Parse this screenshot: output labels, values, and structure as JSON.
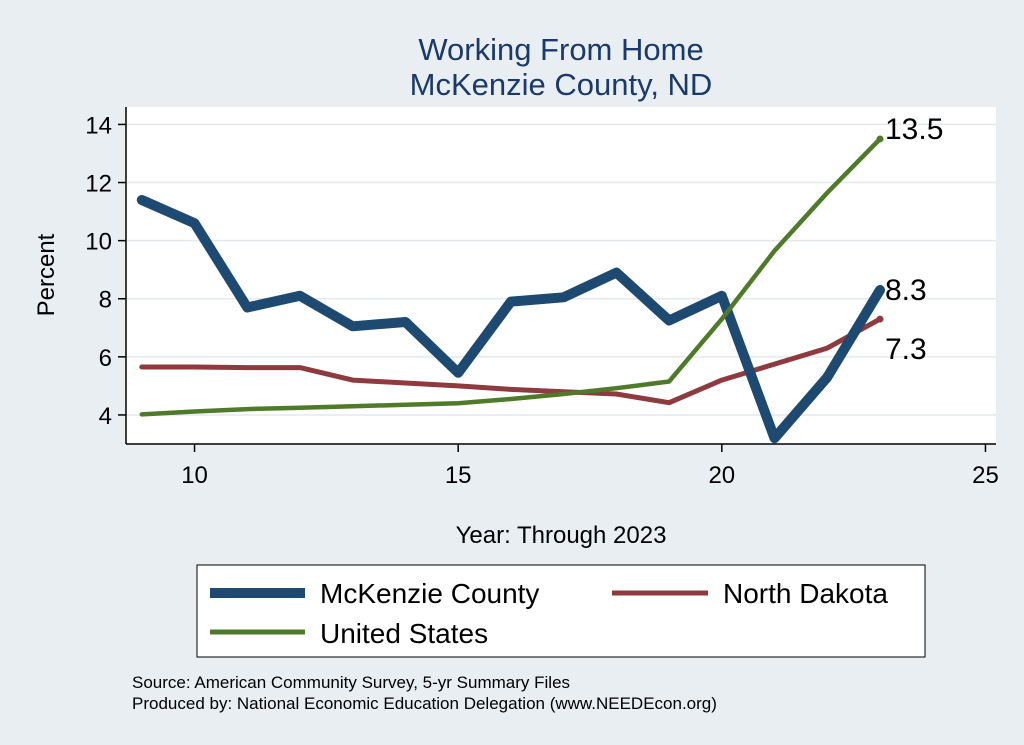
{
  "chart_data": {
    "type": "line",
    "title": "Working From Home",
    "subtitle": "McKenzie County, ND",
    "xlabel": "Year: Through 2023",
    "ylabel": "Percent",
    "xlim": [
      8.7,
      25.2
    ],
    "ylim": [
      3.0,
      14.6
    ],
    "x_ticks": [
      10,
      15,
      20,
      25
    ],
    "y_ticks": [
      4,
      6,
      8,
      10,
      12,
      14
    ],
    "x": [
      9,
      10,
      11,
      12,
      13,
      14,
      15,
      16,
      17,
      18,
      19,
      20,
      21,
      22,
      23
    ],
    "grid": true,
    "legend_position": "bottom",
    "series": [
      {
        "name": "McKenzie County",
        "color": "#1e4a72",
        "values": [
          11.4,
          10.6,
          7.7,
          8.1,
          7.05,
          7.2,
          5.45,
          7.9,
          8.05,
          8.9,
          7.25,
          8.1,
          3.2,
          5.3,
          8.3
        ],
        "end_label": "8.3"
      },
      {
        "name": "North Dakota",
        "color": "#8e3a3f",
        "values": [
          5.65,
          5.65,
          5.63,
          5.63,
          5.2,
          5.1,
          5.0,
          4.88,
          4.8,
          4.72,
          4.42,
          5.2,
          5.75,
          6.3,
          7.3
        ],
        "end_label": "7.3"
      },
      {
        "name": "United States",
        "color": "#4e7a2a",
        "values": [
          4.02,
          4.12,
          4.2,
          4.25,
          4.3,
          4.35,
          4.4,
          4.55,
          4.72,
          4.92,
          5.15,
          7.3,
          9.65,
          11.65,
          13.5
        ],
        "end_label": "13.5"
      }
    ],
    "source": "Source: American Community Survey, 5-yr Summary Files",
    "produced_by": "Produced by: National Economic Education Delegation (www.NEEDEcon.org)"
  }
}
